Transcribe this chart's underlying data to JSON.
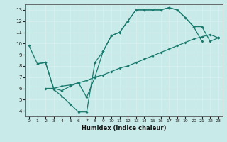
{
  "xlabel": "Humidex (Indice chaleur)",
  "xlim": [
    -0.5,
    23.5
  ],
  "ylim": [
    3.5,
    13.5
  ],
  "xticks": [
    0,
    1,
    2,
    3,
    4,
    5,
    6,
    7,
    8,
    9,
    10,
    11,
    12,
    13,
    14,
    15,
    16,
    17,
    18,
    19,
    20,
    21,
    22,
    23
  ],
  "yticks": [
    4,
    5,
    6,
    7,
    8,
    9,
    10,
    11,
    12,
    13
  ],
  "line_color": "#1a7a6e",
  "bg_color": "#c8eae8",
  "grid_color": "#d8f0ee",
  "line1_x": [
    0,
    1,
    2,
    3,
    4,
    5,
    6,
    7,
    8,
    9,
    10,
    11,
    12,
    13,
    14,
    15,
    16,
    17,
    18,
    19,
    20,
    21
  ],
  "line1_y": [
    9.8,
    8.2,
    8.3,
    5.9,
    5.3,
    4.6,
    3.9,
    3.9,
    8.3,
    9.3,
    10.7,
    11.0,
    12.0,
    13.0,
    13.0,
    13.0,
    13.0,
    13.2,
    13.0,
    12.3,
    11.5,
    10.2
  ],
  "line2_x": [
    2,
    3,
    4,
    5,
    6,
    7,
    8,
    9,
    10,
    11,
    12,
    13,
    14,
    15,
    16,
    17,
    18,
    19,
    20,
    21,
    22,
    23
  ],
  "line2_y": [
    6.0,
    6.0,
    6.2,
    6.3,
    6.5,
    6.7,
    7.0,
    7.2,
    7.5,
    7.8,
    8.0,
    8.3,
    8.6,
    8.9,
    9.2,
    9.5,
    9.8,
    10.1,
    10.4,
    10.6,
    10.8,
    10.5
  ],
  "line3_x": [
    1,
    2,
    3,
    4,
    5,
    6,
    7,
    8,
    9,
    10,
    11,
    12,
    13,
    14,
    15,
    16,
    17,
    18,
    19,
    20,
    21,
    22,
    23
  ],
  "line3_y": [
    8.2,
    8.3,
    6.0,
    5.8,
    6.2,
    6.5,
    5.2,
    7.0,
    9.3,
    10.7,
    11.0,
    12.0,
    13.0,
    13.0,
    13.0,
    13.0,
    13.2,
    13.0,
    12.3,
    11.5,
    11.5,
    10.2,
    10.5
  ]
}
